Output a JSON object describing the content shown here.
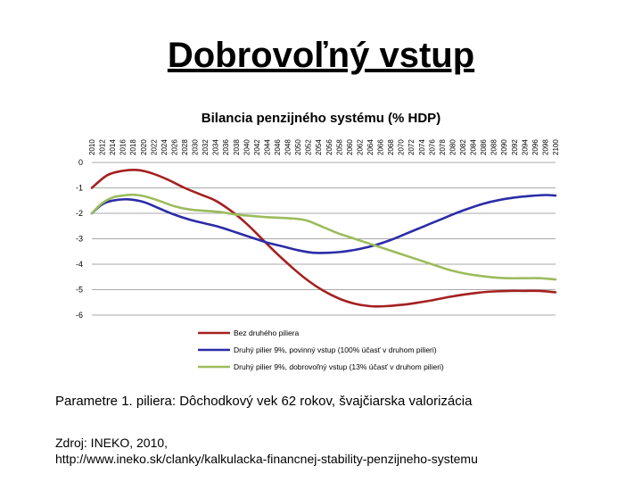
{
  "slide": {
    "title": "Dobrovoľný vstup",
    "params_text": "Parametre 1. piliera: Dôchodkový vek 62 rokov, švajčiarska valorizácia",
    "source_line1": "Zdroj: INEKO, 2010,",
    "source_line2": "http://www.ineko.sk/clanky/kalkulacka-financnej-stability-penzijneho-systemu"
  },
  "chart_data": {
    "type": "line",
    "title": "Bilancia penzijného systému (% HDP)",
    "xlabel": "",
    "ylabel": "",
    "ylim": [
      -6,
      0
    ],
    "yticks": [
      0,
      -1,
      -2,
      -3,
      -4,
      -5,
      -6
    ],
    "grid": true,
    "legend_position": "bottom",
    "x": [
      2010,
      2012,
      2014,
      2016,
      2018,
      2020,
      2022,
      2024,
      2026,
      2028,
      2030,
      2032,
      2034,
      2036,
      2038,
      2040,
      2042,
      2044,
      2046,
      2048,
      2050,
      2052,
      2054,
      2056,
      2058,
      2060,
      2062,
      2064,
      2066,
      2068,
      2070,
      2072,
      2074,
      2076,
      2078,
      2080,
      2082,
      2084,
      2086,
      2088,
      2090,
      2092,
      2094,
      2096,
      2098,
      2100
    ],
    "series": [
      {
        "name": "Bez druhého piliera",
        "color": "#a52020",
        "points": [
          [
            2010,
            -1.0
          ],
          [
            2013,
            -0.5
          ],
          [
            2016,
            -0.33
          ],
          [
            2019,
            -0.3
          ],
          [
            2022,
            -0.45
          ],
          [
            2025,
            -0.7
          ],
          [
            2028,
            -1.0
          ],
          [
            2031,
            -1.25
          ],
          [
            2034,
            -1.5
          ],
          [
            2037,
            -1.9
          ],
          [
            2040,
            -2.4
          ],
          [
            2043,
            -3.0
          ],
          [
            2046,
            -3.6
          ],
          [
            2049,
            -4.15
          ],
          [
            2052,
            -4.65
          ],
          [
            2055,
            -5.05
          ],
          [
            2058,
            -5.35
          ],
          [
            2061,
            -5.55
          ],
          [
            2064,
            -5.65
          ],
          [
            2067,
            -5.65
          ],
          [
            2070,
            -5.6
          ],
          [
            2073,
            -5.52
          ],
          [
            2076,
            -5.42
          ],
          [
            2079,
            -5.3
          ],
          [
            2082,
            -5.2
          ],
          [
            2085,
            -5.12
          ],
          [
            2088,
            -5.07
          ],
          [
            2091,
            -5.05
          ],
          [
            2094,
            -5.05
          ],
          [
            2097,
            -5.05
          ],
          [
            2100,
            -5.1
          ]
        ]
      },
      {
        "name": "Druhý pilier 9%, povinný vstup (100% účasť v druhom pilieri)",
        "color": "#2c2ca8",
        "points": [
          [
            2010,
            -2.0
          ],
          [
            2012,
            -1.65
          ],
          [
            2014,
            -1.5
          ],
          [
            2017,
            -1.45
          ],
          [
            2020,
            -1.55
          ],
          [
            2023,
            -1.8
          ],
          [
            2026,
            -2.05
          ],
          [
            2029,
            -2.25
          ],
          [
            2032,
            -2.4
          ],
          [
            2035,
            -2.55
          ],
          [
            2038,
            -2.75
          ],
          [
            2041,
            -2.95
          ],
          [
            2044,
            -3.15
          ],
          [
            2047,
            -3.3
          ],
          [
            2050,
            -3.45
          ],
          [
            2053,
            -3.55
          ],
          [
            2056,
            -3.55
          ],
          [
            2059,
            -3.5
          ],
          [
            2062,
            -3.4
          ],
          [
            2065,
            -3.25
          ],
          [
            2068,
            -3.05
          ],
          [
            2071,
            -2.8
          ],
          [
            2074,
            -2.55
          ],
          [
            2077,
            -2.3
          ],
          [
            2080,
            -2.05
          ],
          [
            2083,
            -1.82
          ],
          [
            2086,
            -1.62
          ],
          [
            2089,
            -1.48
          ],
          [
            2092,
            -1.38
          ],
          [
            2095,
            -1.32
          ],
          [
            2098,
            -1.28
          ],
          [
            2100,
            -1.3
          ]
        ]
      },
      {
        "name": "Druhý pilier 9%, dobrovoľný vstup (13% účasť v druhom pilieri)",
        "color": "#9cbc5c",
        "points": [
          [
            2010,
            -2.0
          ],
          [
            2012,
            -1.6
          ],
          [
            2014,
            -1.38
          ],
          [
            2016,
            -1.3
          ],
          [
            2018,
            -1.27
          ],
          [
            2020,
            -1.32
          ],
          [
            2023,
            -1.5
          ],
          [
            2026,
            -1.72
          ],
          [
            2029,
            -1.85
          ],
          [
            2032,
            -1.9
          ],
          [
            2035,
            -1.95
          ],
          [
            2038,
            -2.05
          ],
          [
            2041,
            -2.1
          ],
          [
            2044,
            -2.15
          ],
          [
            2047,
            -2.18
          ],
          [
            2050,
            -2.22
          ],
          [
            2052,
            -2.3
          ],
          [
            2055,
            -2.55
          ],
          [
            2058,
            -2.8
          ],
          [
            2061,
            -3.0
          ],
          [
            2064,
            -3.2
          ],
          [
            2067,
            -3.4
          ],
          [
            2070,
            -3.6
          ],
          [
            2073,
            -3.8
          ],
          [
            2076,
            -4.0
          ],
          [
            2079,
            -4.2
          ],
          [
            2082,
            -4.35
          ],
          [
            2085,
            -4.45
          ],
          [
            2088,
            -4.52
          ],
          [
            2091,
            -4.55
          ],
          [
            2094,
            -4.55
          ],
          [
            2097,
            -4.55
          ],
          [
            2100,
            -4.6
          ]
        ]
      }
    ]
  }
}
